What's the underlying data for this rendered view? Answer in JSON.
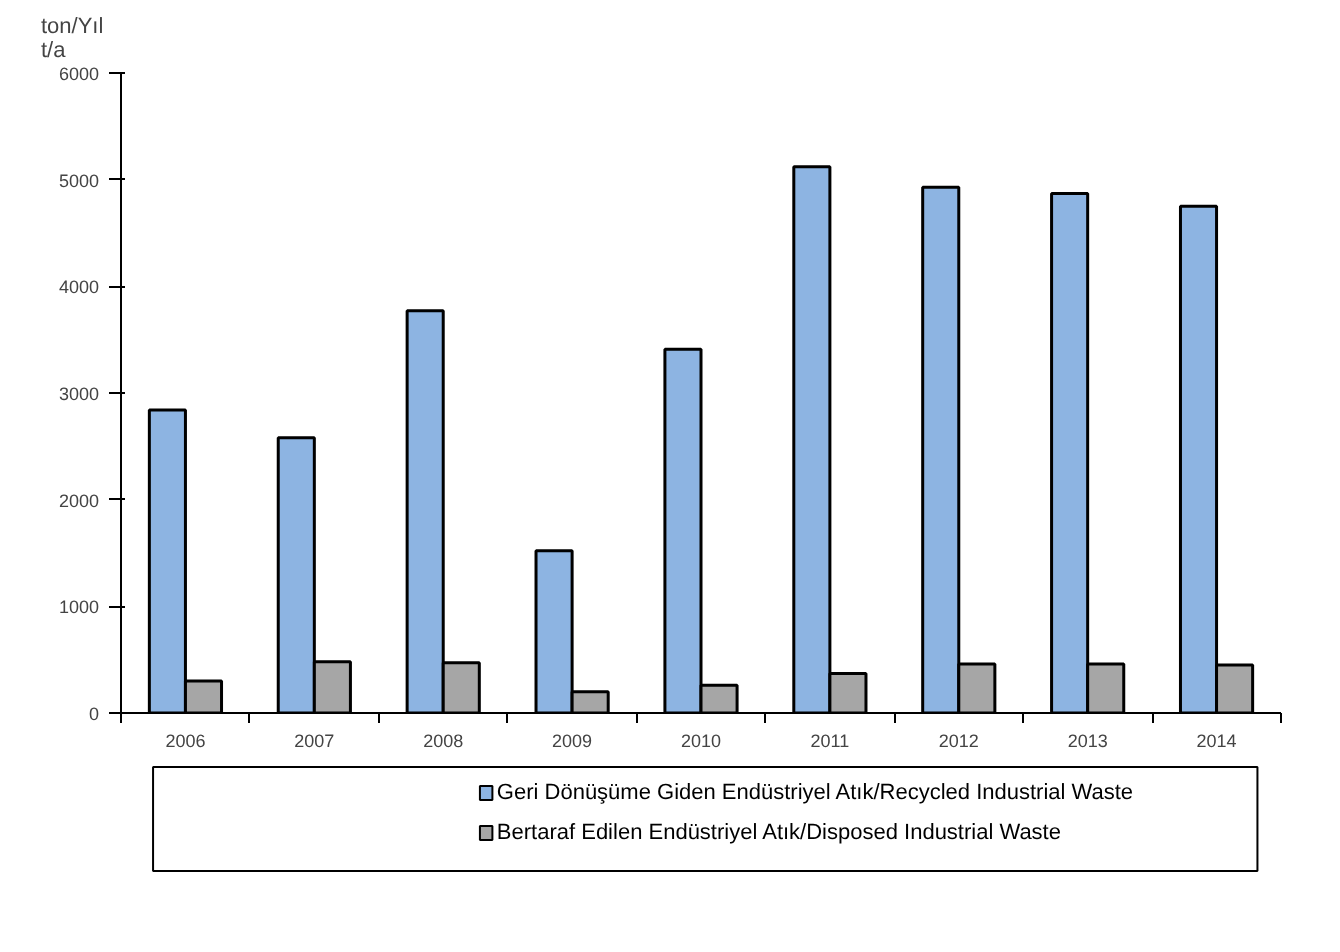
{
  "chart_data": {
    "type": "bar",
    "ylabel": "ton/Yıl\nt/a",
    "categories": [
      "2006",
      "2007",
      "2008",
      "2009",
      "2010",
      "2011",
      "2012",
      "2013",
      "2014"
    ],
    "series": [
      {
        "name": "Geri Dönüşüme Giden Endüstriyel Atık/Recycled Industrial Waste",
        "color": "#8db4e2",
        "values": [
          2840,
          2580,
          3770,
          1520,
          3410,
          5120,
          4930,
          4870,
          4750
        ]
      },
      {
        "name": "Bertaraf Edilen Endüstriyel Atık/Disposed Industrial Waste",
        "color": "#a6a6a6",
        "values": [
          300,
          480,
          470,
          200,
          260,
          370,
          460,
          460,
          450
        ]
      }
    ],
    "ylim": [
      0,
      6000
    ],
    "yticks": [
      0,
      1000,
      2000,
      3000,
      4000,
      5000,
      6000
    ],
    "grid": false,
    "legend": "bottom"
  }
}
